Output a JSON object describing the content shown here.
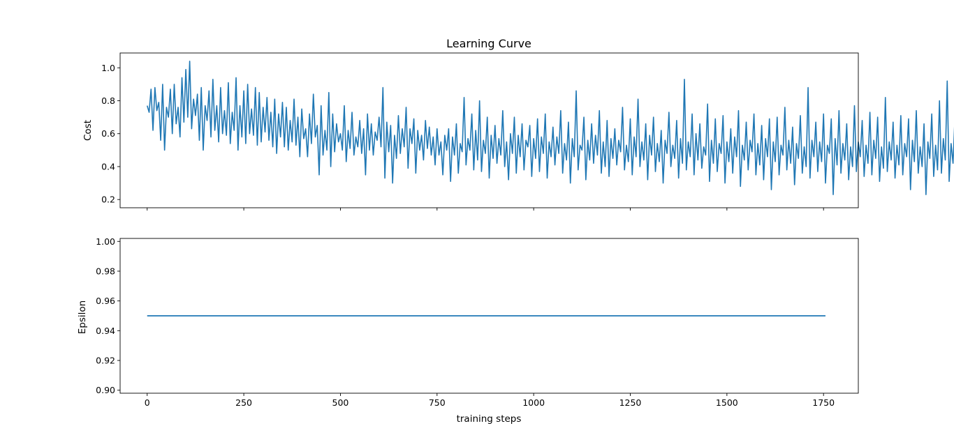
{
  "figure_title": "Learning Curve",
  "chart_data": [
    {
      "type": "line",
      "title": "Learning Curve",
      "xlabel": "",
      "ylabel": "Cost",
      "xlim": [
        -70,
        1840
      ],
      "ylim": [
        0.15,
        1.09
      ],
      "xticks": [
        0,
        250,
        500,
        750,
        1000,
        1250,
        1500,
        1750
      ],
      "xticklabels_visible": false,
      "yticks": [
        0.2,
        0.4,
        0.6,
        0.8,
        1.0
      ],
      "ytick_labels": [
        "0.2",
        "0.4",
        "0.6",
        "0.8",
        "1.0"
      ],
      "color": "#1f77b4",
      "grid": false,
      "series": [
        {
          "x_start": 0,
          "x_step": 5,
          "values": [
            0.77,
            0.73,
            0.87,
            0.62,
            0.88,
            0.74,
            0.79,
            0.56,
            0.9,
            0.5,
            0.76,
            0.7,
            0.87,
            0.6,
            0.9,
            0.66,
            0.76,
            0.58,
            0.94,
            0.67,
            0.99,
            0.7,
            1.04,
            0.63,
            0.81,
            0.71,
            0.84,
            0.56,
            0.88,
            0.5,
            0.77,
            0.68,
            0.86,
            0.58,
            0.93,
            0.62,
            0.77,
            0.55,
            0.88,
            0.6,
            0.74,
            0.59,
            0.91,
            0.54,
            0.73,
            0.62,
            0.94,
            0.5,
            0.77,
            0.58,
            0.86,
            0.54,
            0.9,
            0.6,
            0.75,
            0.59,
            0.88,
            0.53,
            0.85,
            0.55,
            0.76,
            0.61,
            0.82,
            0.56,
            0.73,
            0.52,
            0.81,
            0.48,
            0.72,
            0.58,
            0.79,
            0.52,
            0.76,
            0.5,
            0.68,
            0.55,
            0.81,
            0.53,
            0.7,
            0.46,
            0.75,
            0.57,
            0.63,
            0.46,
            0.72,
            0.54,
            0.84,
            0.58,
            0.65,
            0.35,
            0.77,
            0.47,
            0.62,
            0.5,
            0.85,
            0.4,
            0.72,
            0.49,
            0.66,
            0.55,
            0.6,
            0.5,
            0.77,
            0.43,
            0.62,
            0.51,
            0.73,
            0.47,
            0.58,
            0.52,
            0.68,
            0.48,
            0.63,
            0.35,
            0.72,
            0.5,
            0.66,
            0.47,
            0.61,
            0.56,
            0.7,
            0.52,
            0.88,
            0.33,
            0.67,
            0.49,
            0.65,
            0.3,
            0.59,
            0.45,
            0.71,
            0.48,
            0.63,
            0.52,
            0.76,
            0.39,
            0.63,
            0.54,
            0.69,
            0.36,
            0.62,
            0.5,
            0.59,
            0.44,
            0.68,
            0.51,
            0.64,
            0.47,
            0.58,
            0.41,
            0.63,
            0.47,
            0.55,
            0.35,
            0.59,
            0.5,
            0.63,
            0.31,
            0.58,
            0.47,
            0.66,
            0.36,
            0.54,
            0.49,
            0.82,
            0.41,
            0.57,
            0.5,
            0.72,
            0.38,
            0.62,
            0.44,
            0.8,
            0.37,
            0.56,
            0.48,
            0.7,
            0.33,
            0.59,
            0.45,
            0.65,
            0.42,
            0.57,
            0.47,
            0.74,
            0.4,
            0.55,
            0.32,
            0.6,
            0.48,
            0.7,
            0.36,
            0.59,
            0.46,
            0.66,
            0.38,
            0.56,
            0.52,
            0.65,
            0.34,
            0.57,
            0.45,
            0.69,
            0.37,
            0.58,
            0.48,
            0.72,
            0.33,
            0.55,
            0.46,
            0.64,
            0.41,
            0.58,
            0.48,
            0.74,
            0.36,
            0.54,
            0.44,
            0.67,
            0.3,
            0.57,
            0.46,
            0.86,
            0.38,
            0.53,
            0.5,
            0.7,
            0.32,
            0.56,
            0.44,
            0.66,
            0.42,
            0.59,
            0.47,
            0.74,
            0.36,
            0.55,
            0.4,
            0.68,
            0.34,
            0.57,
            0.45,
            0.63,
            0.41,
            0.56,
            0.49,
            0.76,
            0.38,
            0.53,
            0.43,
            0.69,
            0.35,
            0.58,
            0.46,
            0.81,
            0.4,
            0.55,
            0.44,
            0.66,
            0.32,
            0.59,
            0.47,
            0.7,
            0.37,
            0.54,
            0.43,
            0.62,
            0.3,
            0.56,
            0.48,
            0.73,
            0.4,
            0.53,
            0.45,
            0.68,
            0.33,
            0.57,
            0.42,
            0.93,
            0.38,
            0.55,
            0.46,
            0.72,
            0.35,
            0.6,
            0.44,
            0.66,
            0.39,
            0.52,
            0.47,
            0.78,
            0.31,
            0.56,
            0.42,
            0.69,
            0.37,
            0.54,
            0.48,
            0.71,
            0.3,
            0.55,
            0.43,
            0.63,
            0.36,
            0.58,
            0.46,
            0.74,
            0.28,
            0.53,
            0.44,
            0.67,
            0.38,
            0.56,
            0.49,
            0.72,
            0.35,
            0.54,
            0.41,
            0.65,
            0.32,
            0.57,
            0.46,
            0.69,
            0.26,
            0.55,
            0.43,
            0.7,
            0.35,
            0.53,
            0.47,
            0.76,
            0.38,
            0.56,
            0.42,
            0.64,
            0.29,
            0.54,
            0.45,
            0.71,
            0.36,
            0.52,
            0.4,
            0.88,
            0.33,
            0.56,
            0.46,
            0.67,
            0.37,
            0.55,
            0.43,
            0.72,
            0.3,
            0.53,
            0.48,
            0.69,
            0.23,
            0.57,
            0.41,
            0.74,
            0.36,
            0.54,
            0.44,
            0.66,
            0.32,
            0.52,
            0.4,
            0.77,
            0.37,
            0.55,
            0.46,
            0.68,
            0.34,
            0.53,
            0.42,
            0.73,
            0.35,
            0.56,
            0.45,
            0.7,
            0.31,
            0.52,
            0.39,
            0.82,
            0.37,
            0.55,
            0.44,
            0.67,
            0.33,
            0.53,
            0.41,
            0.71,
            0.35,
            0.54,
            0.46,
            0.69,
            0.26,
            0.56,
            0.43,
            0.74,
            0.36,
            0.52,
            0.4,
            0.66,
            0.23,
            0.55,
            0.45,
            0.72,
            0.34,
            0.53,
            0.38,
            0.8,
            0.36,
            0.57,
            0.44,
            0.92,
            0.31,
            0.54,
            0.42,
            0.7,
            0.35,
            0.55,
            0.47,
            0.66,
            0.33,
            0.52,
            0.41,
            0.79,
            0.37,
            0.56,
            0.44,
            0.69,
            0.34,
            0.54,
            0.4,
            0.72,
            0.27,
            0.53,
            0.46,
            0.68,
            0.37,
            0.56,
            0.42,
            0.74,
            0.35,
            0.55,
            0.44,
            0.78,
            0.33,
            0.52,
            0.41,
            0.7,
            0.36,
            0.57,
            0.45,
            0.66,
            0.3,
            0.54,
            0.43,
            0.73,
            0.36,
            0.53,
            0.4,
            0.69,
            0.32,
            0.56,
            0.46,
            0.76,
            0.35,
            0.54,
            0.42,
            0.71,
            0.34,
            0.55,
            0.45,
            0.67,
            0.32,
            0.53,
            0.41,
            0.75,
            0.26,
            0.56,
            0.44,
            0.7,
            0.36,
            0.53,
            0.39,
            0.82,
            0.34,
            0.55,
            0.43,
            0.68,
            0.19,
            0.52,
            0.4,
            0.74,
            0.35,
            0.56,
            0.45,
            0.66,
            0.25,
            0.54,
            0.42,
            0.79,
            0.36,
            0.55,
            0.43,
            0.83,
            0.35,
            0.8,
            0.41,
            0.79,
            0.31,
            0.54,
            0.38,
            0.55,
            0.39,
            0.62,
            0.43,
            0.53,
            0.38
          ]
        }
      ]
    },
    {
      "type": "line",
      "title": "",
      "xlabel": "training steps",
      "ylabel": "Epsilon",
      "xlim": [
        -70,
        1840
      ],
      "ylim": [
        0.898,
        1.002
      ],
      "xticks": [
        0,
        250,
        500,
        750,
        1000,
        1250,
        1500,
        1750
      ],
      "xtick_labels": [
        "0",
        "250",
        "500",
        "750",
        "1000",
        "1250",
        "1500",
        "1750"
      ],
      "yticks": [
        0.9,
        0.92,
        0.94,
        0.96,
        0.98,
        1.0
      ],
      "ytick_labels": [
        "0.90",
        "0.92",
        "0.94",
        "0.96",
        "0.98",
        "1.00"
      ],
      "color": "#1f77b4",
      "grid": false,
      "series": [
        {
          "x": [
            0,
            1755
          ],
          "values": [
            0.95,
            0.95
          ]
        }
      ]
    }
  ]
}
